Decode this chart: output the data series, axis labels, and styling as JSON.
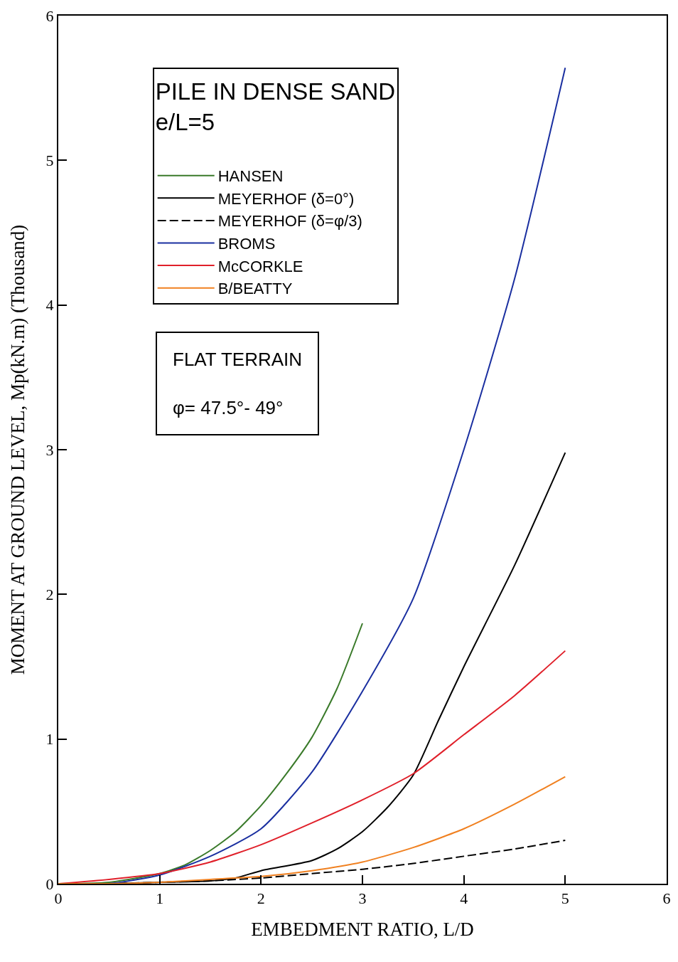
{
  "chart_data": {
    "type": "line",
    "xlabel": "EMBEDMENT RATIO, L/D",
    "ylabel": "MOMENT AT GROUND LEVEL, Mp(kN.m) (Thousand)",
    "legend_title": "PILE IN DENSE SAND\ne/L=5",
    "annotations": [
      "FLAT TERRAIN",
      "φ= 47.5°- 49°"
    ],
    "xlim": [
      0,
      6
    ],
    "xticks": [
      0,
      1,
      2,
      3,
      4,
      5,
      6
    ],
    "ylim": [
      0,
      6
    ],
    "yticks": [
      0,
      1,
      2,
      3,
      4,
      5,
      6
    ],
    "grid": false,
    "legend": "top left",
    "marker": "none",
    "series": [
      {
        "name": "HANSEN",
        "color": "#3a7a2a",
        "line_style": "solid",
        "x": [
          0,
          0.5,
          1,
          1.25,
          1.5,
          1.75,
          2,
          2.25,
          2.5,
          2.75,
          3
        ],
        "values": [
          0,
          0.01,
          0.07,
          0.13,
          0.23,
          0.36,
          0.54,
          0.76,
          1.01,
          1.35,
          1.8
        ]
      },
      {
        "name": "MEYERHOF (δ=0°)",
        "color": "#000000",
        "line_style": "solid",
        "x": [
          0,
          0.5,
          1,
          1.5,
          1.75,
          2,
          2.5,
          2.75,
          3,
          3.25,
          3.5,
          3.75,
          4,
          4.5,
          5
        ],
        "values": [
          0,
          0,
          0.01,
          0.02,
          0.04,
          0.09,
          0.16,
          0.24,
          0.36,
          0.53,
          0.75,
          1.13,
          1.5,
          2.2,
          2.98
        ]
      },
      {
        "name": "MEYERHOF (δ=φ/3)",
        "color": "#000000",
        "line_style": "dashed",
        "x": [
          0,
          0.5,
          1,
          1.5,
          2,
          2.5,
          3,
          3.5,
          4,
          4.5,
          5
        ],
        "values": [
          0,
          0,
          0.01,
          0.02,
          0.04,
          0.07,
          0.1,
          0.14,
          0.19,
          0.24,
          0.3
        ]
      },
      {
        "name": "BROMS",
        "color": "#1a2fa0",
        "line_style": "solid",
        "x": [
          0,
          0.5,
          1,
          1.5,
          2,
          2.5,
          3,
          3.5,
          4,
          4.5,
          5
        ],
        "values": [
          0,
          0,
          0.06,
          0.19,
          0.38,
          0.77,
          1.33,
          1.97,
          3.0,
          4.18,
          5.64
        ]
      },
      {
        "name": "McCORKLE",
        "color": "#e0202a",
        "line_style": "solid",
        "x": [
          0,
          0.5,
          1,
          1.5,
          2,
          2.5,
          3,
          3.5,
          4,
          4.5,
          5
        ],
        "values": [
          0,
          0.03,
          0.07,
          0.15,
          0.27,
          0.42,
          0.58,
          0.76,
          1.03,
          1.3,
          1.61
        ]
      },
      {
        "name": "B/BEATTY",
        "color": "#f08020",
        "line_style": "solid",
        "x": [
          0,
          0.5,
          1,
          1.5,
          2,
          2.5,
          3,
          3.5,
          4,
          4.5,
          5
        ],
        "values": [
          0,
          0,
          0.01,
          0.03,
          0.05,
          0.09,
          0.15,
          0.25,
          0.38,
          0.55,
          0.74
        ]
      }
    ]
  }
}
